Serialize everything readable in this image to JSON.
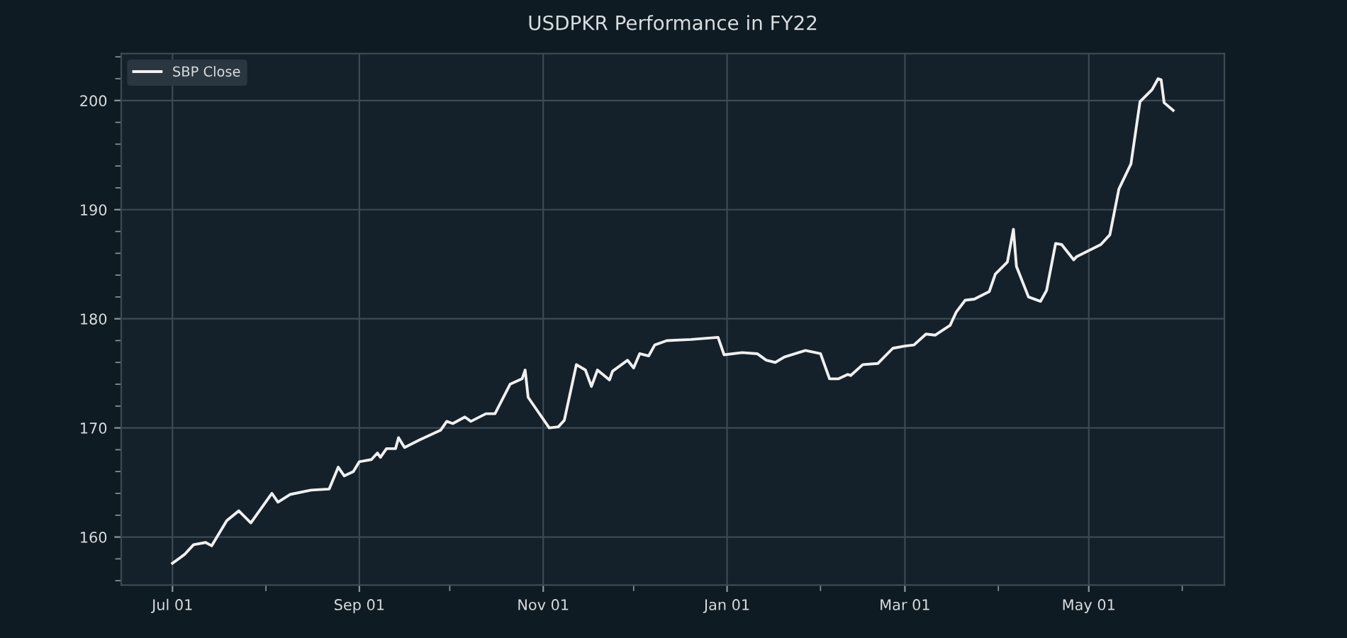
{
  "chart_data": {
    "type": "line",
    "title": "USDPKR Performance in FY22",
    "legend": "top left",
    "grid": true,
    "xlim": [
      "2021-06-14",
      "2022-06-15"
    ],
    "xticks": [
      {
        "value": "2021-07-01",
        "label": "Jul 01"
      },
      {
        "value": "2021-08-01",
        "label": null
      },
      {
        "value": "2021-09-01",
        "label": "Sep 01"
      },
      {
        "value": "2021-10-01",
        "label": null
      },
      {
        "value": "2021-11-01",
        "label": "Nov 01"
      },
      {
        "value": "2021-12-01",
        "label": null
      },
      {
        "value": "2022-01-01",
        "label": "Jan 01"
      },
      {
        "value": "2022-02-01",
        "label": null
      },
      {
        "value": "2022-03-01",
        "label": "Mar 01"
      },
      {
        "value": "2022-04-01",
        "label": null
      },
      {
        "value": "2022-05-01",
        "label": "May 01"
      },
      {
        "value": "2022-06-01",
        "label": null
      }
    ],
    "ylim": [
      155.6,
      204.3
    ],
    "yticks": [
      {
        "value": 156,
        "label": null
      },
      {
        "value": 158,
        "label": null
      },
      160,
      {
        "value": 162,
        "label": null
      },
      {
        "value": 164,
        "label": null
      },
      {
        "value": 166,
        "label": null
      },
      {
        "value": 168,
        "label": null
      },
      170,
      {
        "value": 172,
        "label": null
      },
      {
        "value": 174,
        "label": null
      },
      {
        "value": 176,
        "label": null
      },
      {
        "value": 178,
        "label": null
      },
      180,
      {
        "value": 182,
        "label": null
      },
      {
        "value": 184,
        "label": null
      },
      {
        "value": 186,
        "label": null
      },
      {
        "value": 188,
        "label": null
      },
      190,
      {
        "value": 192,
        "label": null
      },
      {
        "value": 194,
        "label": null
      },
      {
        "value": 196,
        "label": null
      },
      {
        "value": 198,
        "label": null
      },
      200,
      {
        "value": 202,
        "label": null
      },
      {
        "value": 204,
        "label": null
      }
    ],
    "series": [
      {
        "name": "SBP Close",
        "color": "#f0f0f0",
        "x": [
          "2021-07-01",
          "2021-07-05",
          "2021-07-08",
          "2021-07-12",
          "2021-07-14",
          "2021-07-19",
          "2021-07-23",
          "2021-07-27",
          "2021-08-03",
          "2021-08-05",
          "2021-08-09",
          "2021-08-16",
          "2021-08-22",
          "2021-08-25",
          "2021-08-27",
          "2021-08-30",
          "2021-09-01",
          "2021-09-05",
          "2021-09-07",
          "2021-09-08",
          "2021-09-10",
          "2021-09-13",
          "2021-09-14",
          "2021-09-16",
          "2021-09-21",
          "2021-09-28",
          "2021-09-30",
          "2021-10-02",
          "2021-10-06",
          "2021-10-08",
          "2021-10-13",
          "2021-10-16",
          "2021-10-21",
          "2021-10-25",
          "2021-10-26",
          "2021-10-27",
          "2021-10-30",
          "2021-11-03",
          "2021-11-06",
          "2021-11-08",
          "2021-11-12",
          "2021-11-15",
          "2021-11-17",
          "2021-11-19",
          "2021-11-23",
          "2021-11-24",
          "2021-11-29",
          "2021-12-01",
          "2021-12-03",
          "2021-12-06",
          "2021-12-08",
          "2021-12-12",
          "2021-12-20",
          "2021-12-29",
          "2021-12-31",
          "2022-01-06",
          "2022-01-11",
          "2022-01-14",
          "2022-01-17",
          "2022-01-20",
          "2022-01-27",
          "2022-02-01",
          "2022-02-04",
          "2022-02-07",
          "2022-02-10",
          "2022-02-11",
          "2022-02-15",
          "2022-02-20",
          "2022-02-25",
          "2022-03-01",
          "2022-03-04",
          "2022-03-08",
          "2022-03-11",
          "2022-03-16",
          "2022-03-18",
          "2022-03-21",
          "2022-03-24",
          "2022-03-29",
          "2022-03-31",
          "2022-04-04",
          "2022-04-06",
          "2022-04-07",
          "2022-04-11",
          "2022-04-15",
          "2022-04-17",
          "2022-04-20",
          "2022-04-22",
          "2022-04-26",
          "2022-04-27",
          "2022-05-05",
          "2022-05-08",
          "2022-05-11",
          "2022-05-15",
          "2022-05-18",
          "2022-05-22",
          "2022-05-24",
          "2022-05-25",
          "2022-05-26",
          "2022-05-29"
        ],
        "values": [
          157.6,
          158.4,
          159.3,
          159.5,
          159.2,
          161.5,
          162.4,
          161.3,
          164.0,
          163.2,
          163.9,
          164.3,
          164.4,
          166.4,
          165.6,
          166.0,
          166.9,
          167.1,
          167.7,
          167.3,
          168.1,
          168.1,
          169.1,
          168.2,
          168.9,
          169.8,
          170.6,
          170.4,
          171.0,
          170.6,
          171.3,
          171.3,
          174.0,
          174.5,
          175.3,
          172.8,
          171.6,
          170.0,
          170.1,
          170.7,
          175.8,
          175.3,
          173.8,
          175.3,
          174.4,
          175.2,
          176.2,
          175.5,
          176.8,
          176.6,
          177.6,
          178.0,
          178.1,
          178.3,
          176.7,
          176.9,
          176.8,
          176.2,
          176.0,
          176.5,
          177.1,
          176.8,
          174.5,
          174.5,
          174.9,
          174.8,
          175.8,
          175.9,
          177.3,
          177.5,
          177.6,
          178.6,
          178.5,
          179.4,
          180.6,
          181.7,
          181.8,
          182.5,
          184.1,
          185.2,
          188.2,
          184.8,
          182.0,
          181.6,
          182.6,
          186.9,
          186.8,
          185.4,
          185.7,
          186.8,
          187.7,
          191.9,
          194.2,
          199.9,
          201.0,
          202.0,
          201.9,
          199.8,
          199.1
        ]
      }
    ]
  }
}
